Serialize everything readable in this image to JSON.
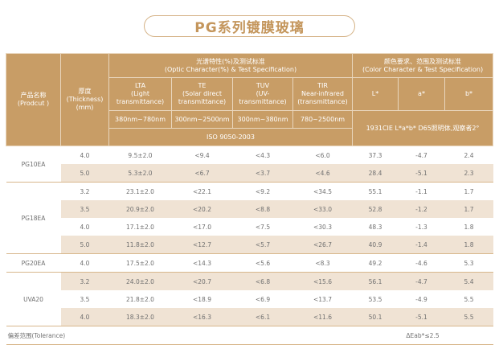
{
  "title": "PG系列镀膜玻璃",
  "header": {
    "product": [
      "产品名称",
      "(Prodcut )"
    ],
    "thickness": [
      "厚度",
      "(Thickness)",
      "(mm)"
    ],
    "optic_group": [
      "光谱特性(%)及测试标准",
      "(Optic Character(%) & Test Specification)"
    ],
    "color_group": [
      "颜色要求、范围及测试标准",
      "(Color Character & Test Specification)"
    ],
    "optic_columns": [
      {
        "lines": [
          "LTA",
          "(Light",
          "transmittance)"
        ],
        "range": "380nm~780nm"
      },
      {
        "lines": [
          "TE",
          "(Solar direct",
          "transmittance)"
        ],
        "range": "300nm~2500nm"
      },
      {
        "lines": [
          "TUV",
          "(UV-",
          "transmittance)"
        ],
        "range": "300nm~380nm"
      },
      {
        "lines": [
          "TIR",
          "Near-infrared",
          "(transmittance)"
        ],
        "range": "780~2500nm"
      }
    ],
    "optic_standard": "ISO 9050-2003",
    "color_columns": [
      "L*",
      "a*",
      "b*"
    ],
    "color_standard": "1931CIE L*a*b*  D65照明体,观察者2°"
  },
  "groups": [
    {
      "product": "PG10EA",
      "rows": [
        [
          "4.0",
          "9.5±2.0",
          "<9.4",
          "<4.3",
          "<6.0",
          "37.3",
          "-4.7",
          "2.4"
        ],
        [
          "5.0",
          "5.3±2.0",
          "<6.7",
          "<3.7",
          "<4.6",
          "28.4",
          "-5.1",
          "2.3"
        ]
      ]
    },
    {
      "product": "PG18EA",
      "rows": [
        [
          "3.2",
          "23.1±2.0",
          "<22.1",
          "<9.2",
          "<34.5",
          "55.1",
          "-1.1",
          "1.7"
        ],
        [
          "3.5",
          "20.9±2.0",
          "<20.2",
          "<8.8",
          "<33.0",
          "52.8",
          "-1.2",
          "1.7"
        ],
        [
          "4.0",
          "17.1±2.0",
          "<17.0",
          "<7.5",
          "<30.3",
          "48.3",
          "-1.3",
          "1.8"
        ],
        [
          "5.0",
          "11.8±2.0",
          "<12.7",
          "<5.7",
          "<26.7",
          "40.9",
          "-1.4",
          "1.8"
        ]
      ]
    },
    {
      "product": "PG20EA",
      "rows": [
        [
          "4.0",
          "17.5±2.0",
          "<14.3",
          "<5.6",
          "<8.3",
          "49.2",
          "-4.6",
          "5.3"
        ]
      ]
    },
    {
      "product": "UVA20",
      "rows": [
        [
          "3.2",
          "24.0±2.0",
          "<20.7",
          "<6.8",
          "<15.6",
          "56.1",
          "-4.7",
          "5.4"
        ],
        [
          "3.5",
          "21.8±2.0",
          "<18.9",
          "<6.9",
          "<13.7",
          "53.5",
          "-4.9",
          "5.5"
        ],
        [
          "4.0",
          "18.3±2.0",
          "<16.3",
          "<6.1",
          "<11.6",
          "50.1",
          "-5.1",
          "5.5"
        ]
      ]
    }
  ],
  "tolerance": {
    "label": "偏差范围(Tolerance)",
    "value": "ΔEab*≤2.5"
  },
  "colors": {
    "header_bg": "#c89d66",
    "shade": "#f0e3d4",
    "title": "#c4965c",
    "text": "#707070"
  }
}
